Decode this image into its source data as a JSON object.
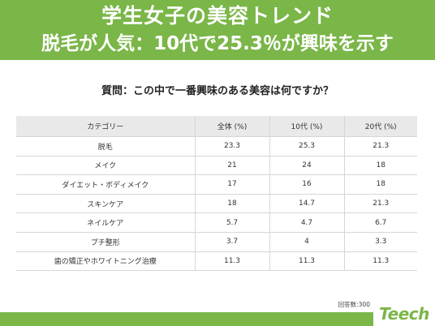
{
  "header": {
    "line1": "学生女子の美容トレンド",
    "line2": "脱毛が人気：10代で25.3％が興味を示す"
  },
  "question": "質問：この中で一番興味のある美容は何ですか？",
  "note": "回答数:300",
  "logo": "Teech",
  "colors": {
    "brand_green": "#7ab648",
    "header_bg": "#e9e9e9"
  },
  "chart_data": {
    "type": "table",
    "columns": [
      "カテゴリー",
      "全体 (%)",
      "10代 (%)",
      "20代 (%)"
    ],
    "rows": [
      [
        "脱毛",
        "23.3",
        "25.3",
        "21.3"
      ],
      [
        "メイク",
        "21",
        "24",
        "18"
      ],
      [
        "ダイエット・ボディメイク",
        "17",
        "16",
        "18"
      ],
      [
        "スキンケア",
        "18",
        "14.7",
        "21.3"
      ],
      [
        "ネイルケア",
        "5.7",
        "4.7",
        "6.7"
      ],
      [
        "プチ整形",
        "3.7",
        "4",
        "3.3"
      ],
      [
        "歯の矯正やホワイトニング治療",
        "11.3",
        "11.3",
        "11.3"
      ]
    ]
  }
}
